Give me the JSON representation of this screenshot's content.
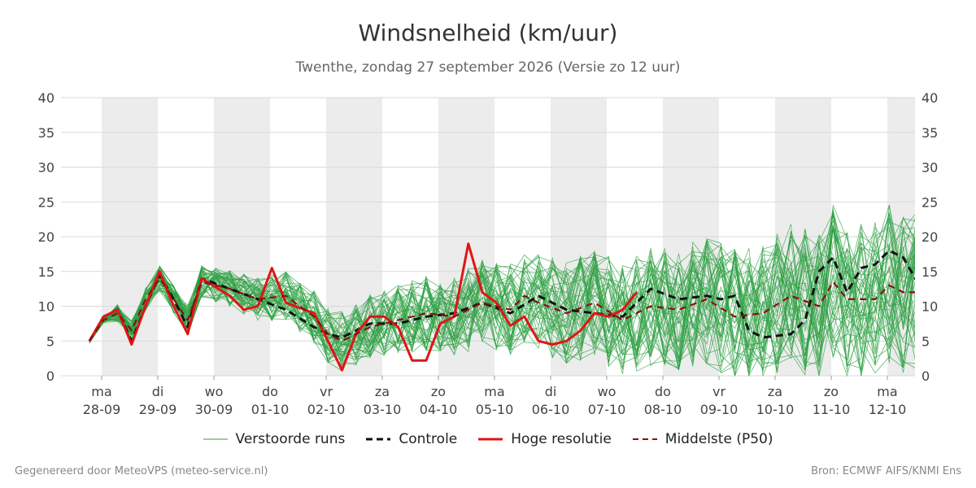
{
  "chart_data": {
    "type": "line",
    "title": "Windsnelheid (km/uur)",
    "subtitle": "Twenthe, zondag 27 september 2026 (Versie zo 12 uur)",
    "ylim": [
      0,
      40
    ],
    "yticks": [
      0,
      5,
      10,
      15,
      20,
      25,
      30,
      35,
      40
    ],
    "xlim": [
      0,
      14.6
    ],
    "day_ticks": [
      {
        "day": "ma",
        "date": "28-09"
      },
      {
        "day": "di",
        "date": "29-09"
      },
      {
        "day": "wo",
        "date": "30-09"
      },
      {
        "day": "do",
        "date": "01-10"
      },
      {
        "day": "vr",
        "date": "02-10"
      },
      {
        "day": "za",
        "date": "03-10"
      },
      {
        "day": "zo",
        "date": "04-10"
      },
      {
        "day": "ma",
        "date": "05-10"
      },
      {
        "day": "di",
        "date": "06-10"
      },
      {
        "day": "wo",
        "date": "07-10"
      },
      {
        "day": "do",
        "date": "08-10"
      },
      {
        "day": "vr",
        "date": "09-10"
      },
      {
        "day": "za",
        "date": "10-10"
      },
      {
        "day": "zo",
        "date": "11-10"
      },
      {
        "day": "ma",
        "date": "12-10"
      }
    ],
    "grid": true,
    "shaded_days": true,
    "legend_position": "bottom",
    "series": [
      {
        "name": "Controle",
        "color": "#111111",
        "dash": "dashed",
        "points": [
          [
            0,
            5
          ],
          [
            0.25,
            8.5
          ],
          [
            0.5,
            9.5
          ],
          [
            0.75,
            5
          ],
          [
            1,
            10
          ],
          [
            1.25,
            14.5
          ],
          [
            1.5,
            11
          ],
          [
            1.75,
            7
          ],
          [
            2,
            14
          ],
          [
            2.5,
            12.5
          ],
          [
            3,
            11
          ],
          [
            3.5,
            9.5
          ],
          [
            4,
            7
          ],
          [
            4.25,
            6
          ],
          [
            4.5,
            5.5
          ],
          [
            5,
            7.5
          ],
          [
            5.5,
            7.5
          ],
          [
            6,
            8.5
          ],
          [
            6.5,
            9
          ],
          [
            7,
            10.5
          ],
          [
            7.5,
            9
          ],
          [
            8,
            11.5
          ],
          [
            8.5,
            9.5
          ],
          [
            9,
            9
          ],
          [
            9.5,
            8.5
          ],
          [
            10,
            12.5
          ],
          [
            10.5,
            11
          ],
          [
            11,
            11.5
          ],
          [
            11.25,
            11
          ],
          [
            11.5,
            11.5
          ],
          [
            11.75,
            6.5
          ],
          [
            12,
            5.5
          ],
          [
            12.5,
            6
          ],
          [
            12.75,
            8
          ],
          [
            13,
            15
          ],
          [
            13.25,
            17
          ],
          [
            13.5,
            12
          ],
          [
            13.75,
            15.5
          ],
          [
            14,
            16
          ],
          [
            14.25,
            18
          ],
          [
            14.5,
            17
          ],
          [
            14.75,
            13.5
          ],
          [
            15,
            14.5
          ],
          [
            15.25,
            16.5
          ]
        ]
      },
      {
        "name": "Hoge resolutie",
        "color": "#e01515",
        "dash": "solid",
        "points": [
          [
            0,
            5
          ],
          [
            0.25,
            8.5
          ],
          [
            0.5,
            9.5
          ],
          [
            0.75,
            4.5
          ],
          [
            1,
            10
          ],
          [
            1.25,
            15
          ],
          [
            1.5,
            10
          ],
          [
            1.75,
            6
          ],
          [
            2,
            14
          ],
          [
            2.5,
            11.5
          ],
          [
            2.75,
            9.5
          ],
          [
            3,
            10
          ],
          [
            3.25,
            15.5
          ],
          [
            3.5,
            10.5
          ],
          [
            4,
            9
          ],
          [
            4.25,
            5
          ],
          [
            4.5,
            0.8
          ],
          [
            4.75,
            6
          ],
          [
            5,
            8.5
          ],
          [
            5.25,
            8.5
          ],
          [
            5.5,
            7
          ],
          [
            5.75,
            2.2
          ],
          [
            6,
            2.2
          ],
          [
            6.25,
            7.5
          ],
          [
            6.5,
            8.5
          ],
          [
            6.75,
            19
          ],
          [
            7,
            12
          ],
          [
            7.25,
            10.5
          ],
          [
            7.5,
            7.2
          ],
          [
            7.75,
            8.5
          ],
          [
            8,
            5
          ],
          [
            8.25,
            4.5
          ],
          [
            8.5,
            5
          ],
          [
            8.75,
            6.5
          ],
          [
            9,
            9
          ],
          [
            9.25,
            8.5
          ],
          [
            9.5,
            9.5
          ],
          [
            9.75,
            12
          ]
        ]
      },
      {
        "name": "Middelste (P50)",
        "color": "#8b1010",
        "dash": "dashed",
        "points": [
          [
            0,
            5
          ],
          [
            0.25,
            8
          ],
          [
            0.5,
            9
          ],
          [
            0.75,
            6.5
          ],
          [
            1,
            11
          ],
          [
            1.25,
            14
          ],
          [
            1.5,
            11
          ],
          [
            1.75,
            8
          ],
          [
            2,
            13.5
          ],
          [
            2.5,
            12.5
          ],
          [
            3,
            11
          ],
          [
            3.5,
            11.5
          ],
          [
            4,
            8.5
          ],
          [
            4.25,
            6
          ],
          [
            4.5,
            5
          ],
          [
            5,
            7
          ],
          [
            5.5,
            8
          ],
          [
            6,
            9
          ],
          [
            6.5,
            8.5
          ],
          [
            7,
            10.5
          ],
          [
            7.5,
            9.5
          ],
          [
            7.75,
            11.5
          ],
          [
            8,
            10.5
          ],
          [
            8.5,
            9
          ],
          [
            9,
            10.5
          ],
          [
            9.5,
            8
          ],
          [
            10,
            10
          ],
          [
            10.5,
            9.5
          ],
          [
            11,
            11
          ],
          [
            11.5,
            8.5
          ],
          [
            12,
            9
          ],
          [
            12.5,
            11.5
          ],
          [
            13,
            10
          ],
          [
            13.25,
            13.5
          ],
          [
            13.5,
            11
          ],
          [
            14,
            11
          ],
          [
            14.25,
            13
          ],
          [
            14.5,
            12
          ],
          [
            15,
            12
          ],
          [
            15.25,
            15.5
          ]
        ]
      }
    ],
    "ensemble_series": {
      "name": "Verstoorde runs",
      "color": "#2ea043",
      "members": 50,
      "x_step": 0.25,
      "x_start": 0,
      "x_end": 15.4,
      "spread_note": "members vary around the median"
    }
  },
  "legend": {
    "ensemble_label": "Verstoorde runs",
    "control_label": "Controle",
    "hires_label": "Hoge resolutie",
    "median_label": "Middelste (P50)"
  },
  "footer": {
    "left": "Gegenereerd door MeteoVPS (meteo-service.nl)",
    "right": "Bron: ECMWF AIFS/KNMI Ens"
  }
}
